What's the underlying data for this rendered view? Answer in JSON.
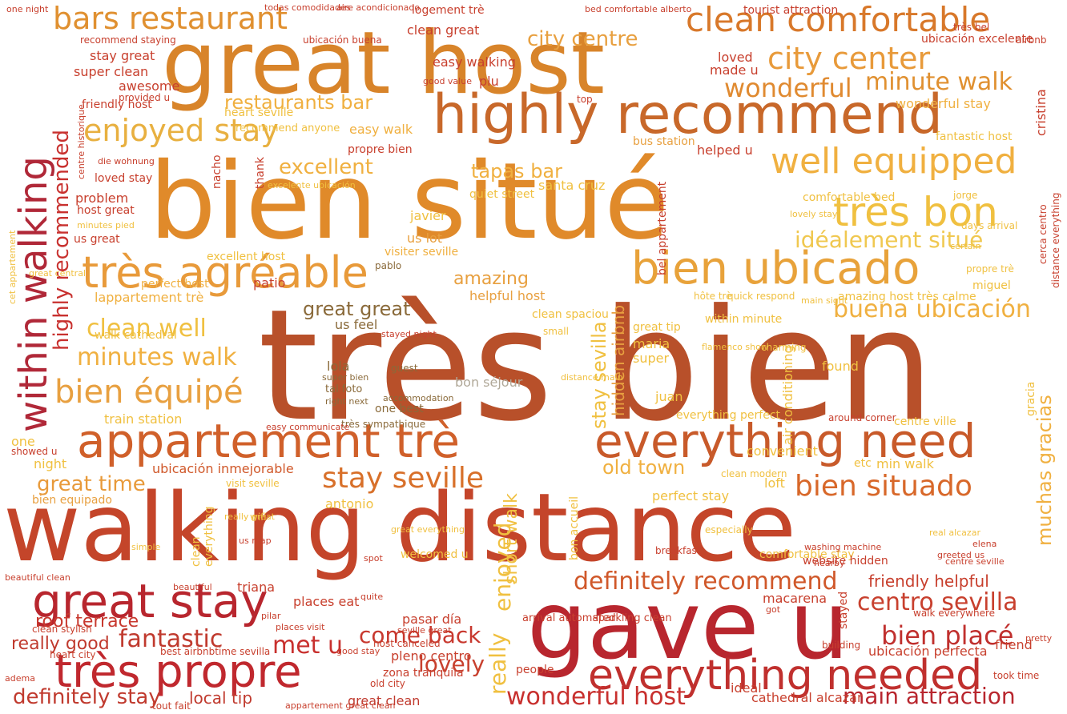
{
  "words": [
    {
      "text": "très bien",
      "color": "#b8502a"
    },
    {
      "text": "walking distance",
      "color": "#c4452a"
    },
    {
      "text": "bien situé",
      "color": "#e08a2a"
    },
    {
      "text": "great host",
      "color": "#d8842a"
    },
    {
      "text": "gave u",
      "color": "#b8262e"
    },
    {
      "text": "highly recommend",
      "color": "#c8682a"
    },
    {
      "text": "appartement trè",
      "color": "#d0602a"
    },
    {
      "text": "everything need",
      "color": "#c85a2a"
    },
    {
      "text": "bien ubicado",
      "color": "#e8a23a"
    },
    {
      "text": "très agréable",
      "color": "#e89a3a"
    },
    {
      "text": "great stay",
      "color": "#b8262e"
    },
    {
      "text": "très propre",
      "color": "#c0282e"
    },
    {
      "text": "everything needed",
      "color": "#c0302e"
    },
    {
      "text": "clean comfortable",
      "color": "#d8782a"
    },
    {
      "text": "bars restaurant",
      "color": "#e09030"
    },
    {
      "text": "within walking",
      "color": "#b02838"
    },
    {
      "text": "très bon",
      "color": "#f0c040"
    },
    {
      "text": "well equipped",
      "color": "#f0b040"
    },
    {
      "text": "city center",
      "color": "#e89a3a"
    },
    {
      "text": "enjoyed stay",
      "color": "#e8b040"
    },
    {
      "text": "bien équipé",
      "color": "#e8a040"
    },
    {
      "text": "stay seville",
      "color": "#d8702a"
    },
    {
      "text": "bien situado",
      "color": "#d8682a"
    },
    {
      "text": "definitely recommend",
      "color": "#d0582a"
    },
    {
      "text": "fantastic",
      "color": "#c03a2e"
    },
    {
      "text": "minutes walk",
      "color": "#f0b040"
    },
    {
      "text": "clean well",
      "color": "#f0c040"
    },
    {
      "text": "wonderful",
      "color": "#e08a30"
    },
    {
      "text": "minute walk",
      "color": "#e09030"
    },
    {
      "text": "idéalement situé",
      "color": "#f0c850"
    },
    {
      "text": "buena ubicación",
      "color": "#f0b040"
    },
    {
      "text": "bien placé",
      "color": "#c0302e"
    },
    {
      "text": "centro sevilla",
      "color": "#c8402e"
    },
    {
      "text": "come back",
      "color": "#c8382e"
    },
    {
      "text": "met u",
      "color": "#c8302e"
    },
    {
      "text": "lovely",
      "color": "#c8402e"
    },
    {
      "text": "wonderful host",
      "color": "#c8302e"
    },
    {
      "text": "main attraction",
      "color": "#b8262e"
    },
    {
      "text": "definitely stay",
      "color": "#c03a2e"
    },
    {
      "text": "great time",
      "color": "#e89a3a"
    },
    {
      "text": "old town",
      "color": "#f0b040"
    },
    {
      "text": "excellent",
      "color": "#f0b040"
    },
    {
      "text": "tapas bar",
      "color": "#f0b040"
    },
    {
      "text": "restaurants bar",
      "color": "#f0b040"
    },
    {
      "text": "city centre",
      "color": "#e8a040"
    },
    {
      "text": "great great",
      "color": "#8a6a3a"
    },
    {
      "text": "amazing",
      "color": "#e8a040"
    },
    {
      "text": "really",
      "color": "#f0c040"
    },
    {
      "text": "enjoyed",
      "color": "#f0c040"
    },
    {
      "text": "roof terrace",
      "color": "#c8382e"
    },
    {
      "text": "highly recommended",
      "color": "#c8302e"
    },
    {
      "text": "really good",
      "color": "#c03a2e"
    },
    {
      "text": "stay sevilla",
      "color": "#f0c040"
    },
    {
      "text": "muchas gracias",
      "color": "#f0b040"
    },
    {
      "text": "hidden airbnb",
      "color": "#e8a040"
    },
    {
      "text": "friendly helpful",
      "color": "#c8402e"
    },
    {
      "text": "short walk",
      "color": "#f0c040"
    },
    {
      "text": "lola",
      "color": "#8a6a3a"
    },
    {
      "text": "local tip",
      "color": "#c03a2e"
    },
    {
      "text": "ubicación inmejorable",
      "color": "#d0582a"
    },
    {
      "text": "train station",
      "color": "#f0c040"
    },
    {
      "text": "perfect host",
      "color": "#f0b040"
    },
    {
      "text": "lappartement trè",
      "color": "#f0b040"
    },
    {
      "text": "great tip",
      "color": "#f0c040"
    },
    {
      "text": "recommend anyone",
      "color": "#f0c040"
    },
    {
      "text": "helpful host",
      "color": "#e8a040"
    },
    {
      "text": "stay great",
      "color": "#c8402e"
    },
    {
      "text": "super clean",
      "color": "#c8402e"
    },
    {
      "text": "awesome",
      "color": "#c8402e"
    },
    {
      "text": "easy walking",
      "color": "#c8402e"
    },
    {
      "text": "clean great",
      "color": "#c8402e"
    },
    {
      "text": "loved",
      "color": "#c8402e"
    },
    {
      "text": "made u",
      "color": "#c8402e"
    },
    {
      "text": "wonderful stay",
      "color": "#f0b040"
    },
    {
      "text": "heart seville",
      "color": "#f0c040"
    },
    {
      "text": "easy walk",
      "color": "#f0b040"
    },
    {
      "text": "comfortable bed",
      "color": "#f0c040"
    },
    {
      "text": "quiet street",
      "color": "#f0c040"
    },
    {
      "text": "santa cruz",
      "color": "#f0c040"
    },
    {
      "text": "javier",
      "color": "#f0c040"
    },
    {
      "text": "us lot",
      "color": "#e8a040"
    },
    {
      "text": "visiter seville",
      "color": "#f0b040"
    },
    {
      "text": "pablo",
      "color": "#8a6a3a"
    },
    {
      "text": "patio",
      "color": "#c8402e"
    },
    {
      "text": "bon séjour",
      "color": "#b0a898"
    },
    {
      "text": "one best",
      "color": "#8a6a3a"
    },
    {
      "text": "us feel",
      "color": "#8a6a3a"
    },
    {
      "text": "maria",
      "color": "#f0c040"
    },
    {
      "text": "juan",
      "color": "#f0c040"
    },
    {
      "text": "super",
      "color": "#f0c040"
    },
    {
      "text": "antonio",
      "color": "#f0c040"
    },
    {
      "text": "perfect stay",
      "color": "#f0c040"
    },
    {
      "text": "convenient",
      "color": "#f0c040"
    },
    {
      "text": "min walk",
      "color": "#f0c040"
    },
    {
      "text": "centre ville",
      "color": "#f0c040"
    },
    {
      "text": "loft",
      "color": "#f0c040"
    },
    {
      "text": "etc",
      "color": "#f0c040"
    },
    {
      "text": "problem",
      "color": "#c8402e"
    },
    {
      "text": "night",
      "color": "#f0c040"
    },
    {
      "text": "one",
      "color": "#f0c040"
    },
    {
      "text": "bien equipado",
      "color": "#e8a040"
    },
    {
      "text": "visit seville",
      "color": "#f0c040"
    },
    {
      "text": "clean modern",
      "color": "#f0c040"
    },
    {
      "text": "ubicación perfecta",
      "color": "#c8402e"
    },
    {
      "text": "friend",
      "color": "#c8402e"
    },
    {
      "text": "cathedral alcazar",
      "color": "#c8402e"
    },
    {
      "text": "ideal",
      "color": "#c8402e"
    },
    {
      "text": "great clean",
      "color": "#c03a2e"
    },
    {
      "text": "people",
      "color": "#c8402e"
    },
    {
      "text": "pleno centro",
      "color": "#c8402e"
    },
    {
      "text": "zona tranquila",
      "color": "#c8402e"
    },
    {
      "text": "pasar día",
      "color": "#c8402e"
    },
    {
      "text": "places eat",
      "color": "#c8402e"
    },
    {
      "text": "triana",
      "color": "#c8402e"
    },
    {
      "text": "macarena",
      "color": "#c8402e"
    },
    {
      "text": "tourist attraction",
      "color": "#c8402e"
    },
    {
      "text": "logement trè",
      "color": "#c8402e"
    },
    {
      "text": "comfortable stay",
      "color": "#f0c040"
    },
    {
      "text": "walk cathedral",
      "color": "#f0c040"
    },
    {
      "text": "amazing host très calme",
      "color": "#f0c040"
    },
    {
      "text": "air conditioning",
      "color": "#f0c040"
    },
    {
      "text": "everything perfect",
      "color": "#f0c040"
    },
    {
      "text": "excellent host",
      "color": "#f0c040"
    },
    {
      "text": "bus station",
      "color": "#e8a040"
    },
    {
      "text": "fantastic host",
      "color": "#f0c040"
    },
    {
      "text": "helped u",
      "color": "#c8402e"
    },
    {
      "text": "bel appartement",
      "color": "#c8402e"
    },
    {
      "text": "thank",
      "color": "#c8402e"
    },
    {
      "text": "nacho",
      "color": "#c8402e"
    },
    {
      "text": "cristina",
      "color": "#c8402e"
    },
    {
      "text": "host great",
      "color": "#c8402e"
    },
    {
      "text": "loved stay",
      "color": "#c8402e"
    },
    {
      "text": "us great",
      "color": "#c8402e"
    },
    {
      "text": "propre bien",
      "color": "#c8402e"
    },
    {
      "text": "bon accueil",
      "color": "#f0c040"
    },
    {
      "text": "welcomed u",
      "color": "#f0c040"
    },
    {
      "text": "one night",
      "color": "#c8402e"
    },
    {
      "text": "todas comodidades",
      "color": "#c8402e"
    },
    {
      "text": "aire acondicionado",
      "color": "#c8402e"
    },
    {
      "text": "bed comfortable alberto",
      "color": "#c8402e"
    },
    {
      "text": "recommend staying",
      "color": "#c8402e"
    },
    {
      "text": "ubicación buena",
      "color": "#c8402e"
    },
    {
      "text": "ubicación excelente",
      "color": "#c8402e"
    },
    {
      "text": "airbnb",
      "color": "#c8402e"
    },
    {
      "text": "très bel",
      "color": "#c8402e"
    },
    {
      "text": "plu",
      "color": "#c8402e"
    },
    {
      "text": "good value",
      "color": "#c8402e"
    },
    {
      "text": "top",
      "color": "#c8402e"
    },
    {
      "text": "friendly host",
      "color": "#c8402e"
    },
    {
      "text": "provided u",
      "color": "#c8402e"
    },
    {
      "text": "excelente ubicación",
      "color": "#f0c040"
    },
    {
      "text": "centre historique",
      "color": "#c8402e"
    },
    {
      "text": "die wohnung",
      "color": "#c8402e"
    },
    {
      "text": "minutes pied",
      "color": "#f0c040"
    },
    {
      "text": "cet appartement",
      "color": "#f0c040"
    },
    {
      "text": "great central",
      "color": "#f0c040"
    },
    {
      "text": "clean spaciou",
      "color": "#f0c040"
    },
    {
      "text": "small",
      "color": "#f0c040"
    },
    {
      "text": "stayed night",
      "color": "#c8402e"
    },
    {
      "text": "distance main",
      "color": "#f0c040"
    },
    {
      "text": "flamenco show",
      "color": "#f0c040"
    },
    {
      "text": "charming",
      "color": "#f0c040"
    },
    {
      "text": "lovely stay",
      "color": "#f0c040"
    },
    {
      "text": "hôte trè",
      "color": "#f0c040"
    },
    {
      "text": "quick respond",
      "color": "#f0c040"
    },
    {
      "text": "main sight",
      "color": "#f0c040"
    },
    {
      "text": "within minute",
      "color": "#f0c040"
    },
    {
      "text": "propre trè",
      "color": "#f0c040"
    },
    {
      "text": "miguel",
      "color": "#f0c040"
    },
    {
      "text": "cerca centro",
      "color": "#c8402e"
    },
    {
      "text": "distance everything",
      "color": "#c8402e"
    },
    {
      "text": "found",
      "color": "#f0c040"
    },
    {
      "text": "jorge",
      "color": "#f0c040"
    },
    {
      "text": "days arrival",
      "color": "#f0c040"
    },
    {
      "text": "around corner",
      "color": "#c8402e"
    },
    {
      "text": "website hidden",
      "color": "#c8402e"
    },
    {
      "text": "washing machine",
      "color": "#c8402e"
    },
    {
      "text": "centre seville",
      "color": "#c8402e"
    },
    {
      "text": "arrival automated",
      "color": "#c8402e"
    },
    {
      "text": "sparkling clean",
      "color": "#c8402e"
    },
    {
      "text": "seville great",
      "color": "#c8402e"
    },
    {
      "text": "host canceled",
      "color": "#c8402e"
    },
    {
      "text": "walk everywhere",
      "color": "#c8402e"
    },
    {
      "text": "great everything",
      "color": "#f0c040"
    },
    {
      "text": "breakfast",
      "color": "#c8402e"
    },
    {
      "text": "building",
      "color": "#c8402e"
    },
    {
      "text": "stayed",
      "color": "#c8402e"
    },
    {
      "text": "got",
      "color": "#c8402e"
    },
    {
      "text": "took time",
      "color": "#c8402e"
    },
    {
      "text": "pretty",
      "color": "#c8402e"
    },
    {
      "text": "real alcazar",
      "color": "#f0c040"
    },
    {
      "text": "elena",
      "color": "#c8402e"
    },
    {
      "text": "greeted us",
      "color": "#c8402e"
    },
    {
      "text": "beautiful clean",
      "color": "#c8402e"
    },
    {
      "text": "clean stylish",
      "color": "#c8402e"
    },
    {
      "text": "heart city",
      "color": "#c8402e"
    },
    {
      "text": "best airbnbtime sevilla",
      "color": "#c8402e"
    },
    {
      "text": "good stay",
      "color": "#c8402e"
    },
    {
      "text": "old city",
      "color": "#c8402e"
    },
    {
      "text": "tout fait",
      "color": "#c8402e"
    },
    {
      "text": "appartement great clean",
      "color": "#c8402e"
    },
    {
      "text": "adema",
      "color": "#c8402e"
    },
    {
      "text": "beautiful",
      "color": "#c8402e"
    },
    {
      "text": "clean",
      "color": "#f0c040"
    },
    {
      "text": "everything",
      "color": "#f0c040"
    },
    {
      "text": "really great",
      "color": "#f0c040"
    },
    {
      "text": "us map",
      "color": "#c8402e"
    },
    {
      "text": "wifi",
      "color": "#f0c040"
    },
    {
      "text": "spot",
      "color": "#c8402e"
    },
    {
      "text": "quite",
      "color": "#c8402e"
    },
    {
      "text": "pilar",
      "color": "#c8402e"
    },
    {
      "text": "places visit",
      "color": "#c8402e"
    },
    {
      "text": "guest",
      "color": "#8a6a3a"
    },
    {
      "text": "tal foto",
      "color": "#8a6a3a"
    },
    {
      "text": "right next",
      "color": "#8a6a3a"
    },
    {
      "text": "super bien",
      "color": "#8a6a3a"
    },
    {
      "text": "accommodation",
      "color": "#8a6a3a"
    },
    {
      "text": "très sympathique",
      "color": "#8a6a3a"
    },
    {
      "text": "easy communicate",
      "color": "#c8402e"
    },
    {
      "text": "showed u",
      "color": "#c8402e"
    },
    {
      "text": "gracia",
      "color": "#f0c040"
    },
    {
      "text": "simple",
      "color": "#f0c040"
    },
    {
      "text": "especially",
      "color": "#f0c040"
    },
    {
      "text": "nearby",
      "color": "#c8402e"
    },
    {
      "text": "certain",
      "color": "#f0c040"
    }
  ]
}
